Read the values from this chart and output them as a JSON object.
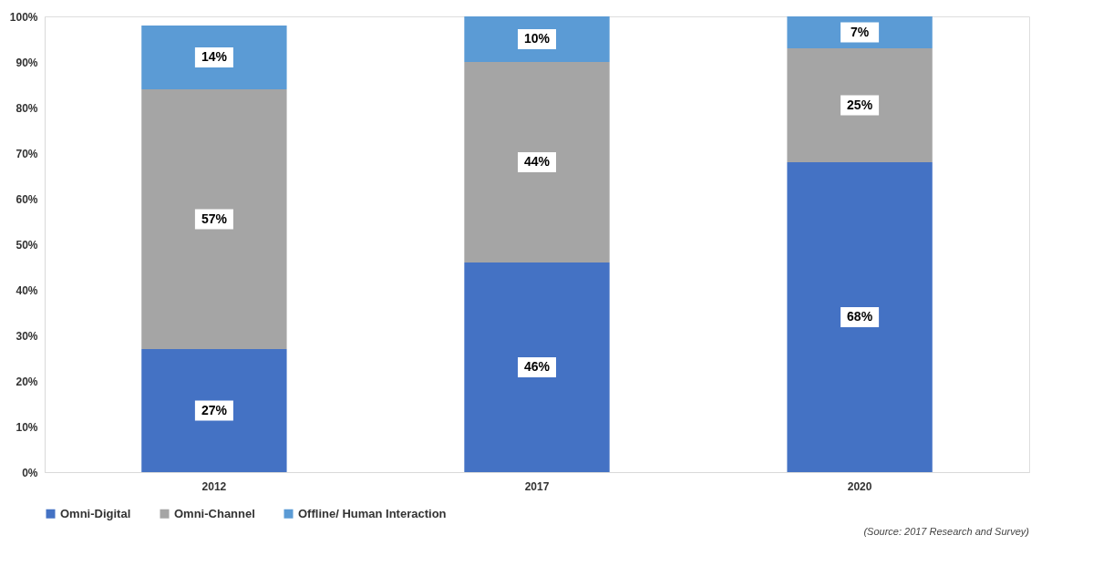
{
  "chart_data": {
    "type": "bar",
    "stacked": true,
    "categories": [
      "2012",
      "2017",
      "2020"
    ],
    "series": [
      {
        "name": "Omni-Digital",
        "color": "#4472c4",
        "values": [
          27,
          46,
          68
        ]
      },
      {
        "name": "Omni-Channel",
        "color": "#a5a5a5",
        "values": [
          57,
          44,
          25
        ]
      },
      {
        "name": "Offline/ Human Interaction",
        "color": "#5b9bd5",
        "values": [
          14,
          10,
          7
        ]
      }
    ],
    "ylim": [
      0,
      100
    ],
    "yticks": [
      {
        "value": 0,
        "label": "0%"
      },
      {
        "value": 10,
        "label": "10%"
      },
      {
        "value": 20,
        "label": "20%"
      },
      {
        "value": 30,
        "label": "30%"
      },
      {
        "value": 40,
        "label": "40%"
      },
      {
        "value": 50,
        "label": "50%"
      },
      {
        "value": 60,
        "label": "60%"
      },
      {
        "value": 70,
        "label": "70%"
      },
      {
        "value": 80,
        "label": "80%"
      },
      {
        "value": 90,
        "label": "90%"
      },
      {
        "value": 100,
        "label": "100%"
      }
    ],
    "value_labels": [
      [
        "27%",
        "46%",
        "68%"
      ],
      [
        "57%",
        "44%",
        "25%"
      ],
      [
        "14%",
        "10%",
        "7%"
      ]
    ],
    "legend": "bottom",
    "grid": false,
    "annotations": [
      "(Source: 2017 Research and Survey)"
    ]
  }
}
